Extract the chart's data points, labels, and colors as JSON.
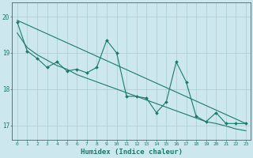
{
  "bg_color": "#cce8ee",
  "line_color": "#1a7a6e",
  "grid_color": "#aaccd4",
  "xlabel": "Humidex (Indice chaleur)",
  "ylabel_ticks": [
    17,
    18,
    19,
    20
  ],
  "xlim": [
    -0.5,
    23.5
  ],
  "ylim": [
    16.6,
    20.4
  ],
  "line1_x": [
    0,
    1,
    2,
    3,
    4,
    5,
    6,
    7,
    8,
    9,
    10,
    11,
    12,
    13,
    14,
    15,
    16,
    17,
    18,
    19,
    20,
    21,
    22,
    23
  ],
  "line1_y": [
    19.85,
    19.05,
    18.85,
    18.6,
    18.75,
    18.5,
    18.55,
    18.45,
    18.6,
    19.35,
    19.0,
    17.8,
    17.8,
    17.75,
    17.35,
    17.65,
    18.75,
    18.2,
    17.25,
    17.1,
    17.35,
    17.05,
    17.05,
    17.05
  ],
  "line2_x": [
    0,
    1,
    2,
    3,
    4,
    5,
    6,
    7,
    8,
    9,
    10,
    11,
    12,
    13,
    14,
    15,
    16,
    17,
    18,
    19,
    20,
    21,
    22,
    23
  ],
  "line2_y": [
    19.55,
    19.15,
    18.95,
    18.8,
    18.65,
    18.55,
    18.4,
    18.3,
    18.2,
    18.1,
    18.0,
    17.9,
    17.8,
    17.7,
    17.6,
    17.5,
    17.4,
    17.3,
    17.2,
    17.1,
    17.05,
    16.98,
    16.9,
    16.85
  ],
  "line3_x": [
    0,
    23
  ],
  "line3_y": [
    19.9,
    17.05
  ]
}
